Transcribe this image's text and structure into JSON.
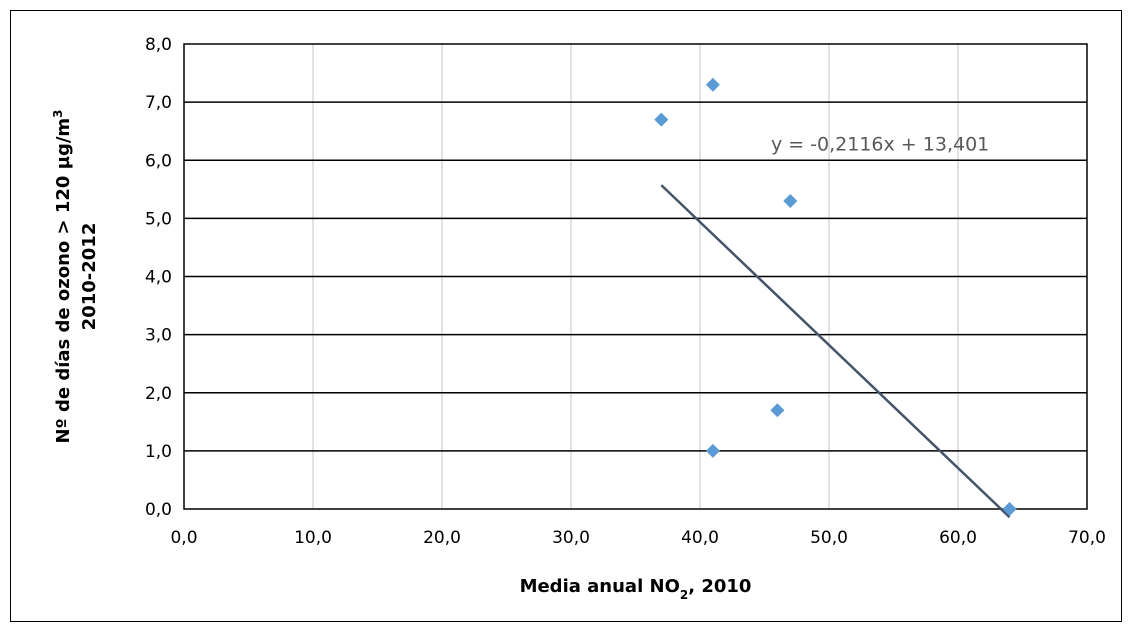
{
  "chart_data": {
    "type": "scatter",
    "x": [
      37,
      41,
      47,
      46,
      41,
      64
    ],
    "y": [
      6.7,
      7.3,
      5.3,
      1.7,
      1.0,
      0.0
    ],
    "xlim": [
      0,
      70
    ],
    "ylim": [
      0,
      8
    ],
    "x_ticks": [
      "0,0",
      "10,0",
      "20,0",
      "30,0",
      "40,0",
      "50,0",
      "60,0",
      "70,0"
    ],
    "y_ticks": [
      "0,0",
      "1,0",
      "2,0",
      "3,0",
      "4,0",
      "5,0",
      "6,0",
      "7,0",
      "8,0"
    ],
    "xlabel": "Media anual NO",
    "xlabel_sub": "2",
    "xlabel_suffix": ", 2010",
    "ylabel_line1": "Nº de días  de ozono > 120 µg/m",
    "ylabel_sup": "3",
    "ylabel_line2": "2010-2012",
    "trendline": {
      "slope": -0.2116,
      "intercept": 13.401,
      "x_from": 37,
      "x_to": 64
    },
    "trendline_label": "y = -0,2116x + 13,401",
    "grid": true,
    "colors": {
      "marker": "#5B9BD5",
      "trendline": "#44546A",
      "gridline": "#000000",
      "vgrid": "#d9d9d9"
    }
  }
}
